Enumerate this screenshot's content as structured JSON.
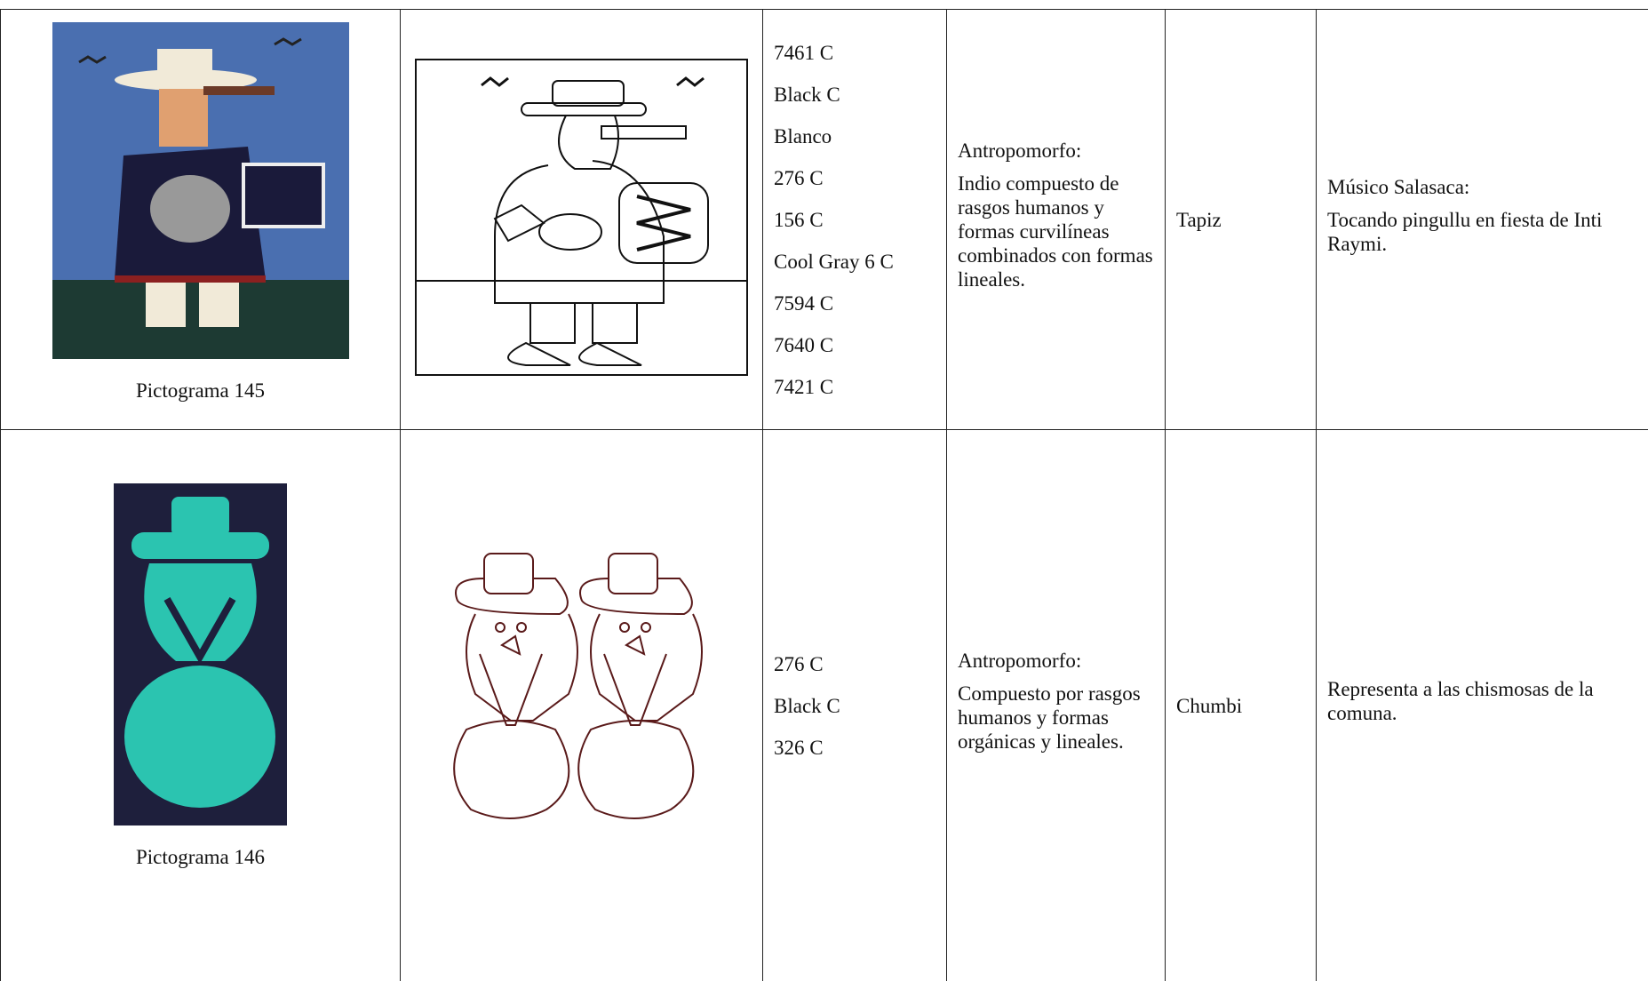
{
  "rows": [
    {
      "pictogram": "Pictograma 145",
      "colors": [
        "7461 C",
        "Black C",
        "Blanco",
        "276 C",
        "156 C",
        "Cool Gray 6 C",
        "7594 C",
        "7640 C",
        "7421 C"
      ],
      "type_title": "Antropomorfo:",
      "type_text": "Indio compuesto de rasgos humanos y formas curvilíneas combinados con formas lineales.",
      "technique": "Tapiz",
      "meaning_title": "Músico Salasaca:",
      "meaning_text": "Tocando pingullu en fiesta de Inti Raymi."
    },
    {
      "pictogram": "Pictograma 146",
      "colors": [
        "276 C",
        "Black C",
        "326 C"
      ],
      "type_title": "Antropomorfo:",
      "type_text": "Compuesto por rasgos humanos y formas orgánicas y lineales.",
      "technique": "Chumbi",
      "meaning_text": "Representa a las chismosas de la comuna."
    }
  ]
}
